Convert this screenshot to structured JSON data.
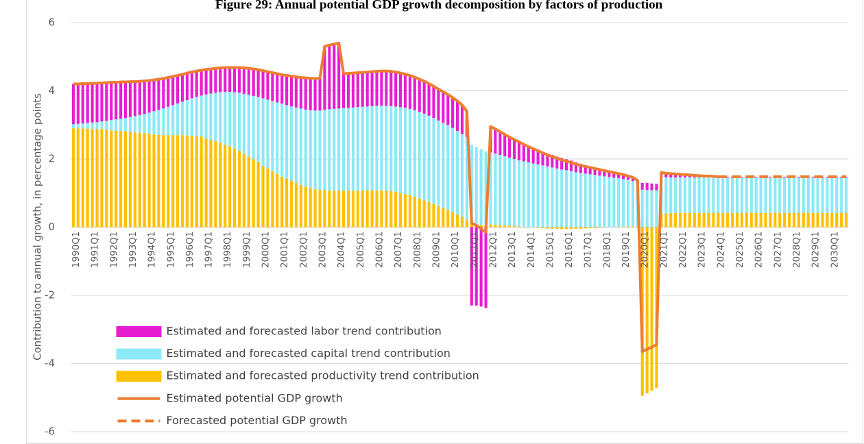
{
  "chart_data": {
    "type": "bar",
    "stacked": true,
    "title": "Figure 29: Annual potential GDP growth decomposition by factors of production",
    "y_label": "Contribution to annual growth, in percentage points",
    "ylim": [
      -6,
      6
    ],
    "yticks": [
      -6,
      -4,
      -2,
      0,
      2,
      4,
      6
    ],
    "grid": true,
    "legend": "lower left",
    "categories": [
      "1990Q1",
      null,
      null,
      null,
      "1991Q1",
      null,
      null,
      null,
      "1992Q1",
      null,
      null,
      null,
      "1993Q1",
      null,
      null,
      null,
      "1994Q1",
      null,
      null,
      null,
      "1995Q1",
      null,
      null,
      null,
      "1996Q1",
      null,
      null,
      null,
      "1997Q1",
      null,
      null,
      null,
      "1998Q1",
      null,
      null,
      null,
      "1999Q1",
      null,
      null,
      null,
      "2000Q1",
      null,
      null,
      null,
      "2001Q1",
      null,
      null,
      null,
      "2002Q1",
      null,
      null,
      null,
      "2003Q1",
      null,
      null,
      null,
      "2004Q1",
      null,
      null,
      null,
      "2005Q1",
      null,
      null,
      null,
      "2006Q1",
      null,
      null,
      null,
      "2007Q1",
      null,
      null,
      null,
      "2008Q1",
      null,
      null,
      null,
      "2009Q1",
      null,
      null,
      null,
      "2010Q1",
      null,
      null,
      null,
      "2011Q1",
      null,
      null,
      null,
      "2012Q1",
      null,
      null,
      null,
      "2013Q1",
      null,
      null,
      null,
      "2014Q1",
      null,
      null,
      null,
      "2015Q1",
      null,
      null,
      null,
      "2016Q1",
      null,
      null,
      null,
      "2017Q1",
      null,
      null,
      null,
      "2018Q1",
      null,
      null,
      null,
      "2019Q1",
      null,
      null,
      null,
      "2020Q1",
      null,
      null,
      null,
      "2021Q1",
      null,
      null,
      null,
      "2022Q1",
      null,
      null,
      null,
      "2023Q1",
      null,
      null,
      null,
      "2024Q1",
      null,
      null,
      null,
      "2025Q1",
      null,
      null,
      null,
      "2026Q1",
      null,
      null,
      null,
      "2027Q1",
      null,
      null,
      null,
      "2028Q1",
      null,
      null,
      null,
      "2029Q1",
      null,
      null,
      null,
      "2030Q1",
      null,
      null,
      null
    ],
    "series": [
      {
        "name": "Estimated and forecasted labor trend contribution",
        "type": "bar",
        "color": "#e61ed2",
        "values": [
          1.18,
          1.17,
          1.17,
          1.15,
          1.15,
          1.14,
          1.13,
          1.12,
          1.11,
          1.09,
          1.08,
          1.06,
          1.04,
          1.01,
          0.99,
          0.97,
          0.94,
          0.92,
          0.9,
          0.88,
          0.86,
          0.84,
          0.82,
          0.8,
          0.79,
          0.77,
          0.76,
          0.74,
          0.74,
          0.72,
          0.72,
          0.71,
          0.71,
          0.71,
          0.72,
          0.74,
          0.76,
          0.78,
          0.79,
          0.8,
          0.81,
          0.82,
          0.83,
          0.84,
          0.85,
          0.87,
          0.89,
          0.9,
          0.91,
          0.93,
          0.94,
          0.94,
          0.95,
          1.86,
          1.88,
          1.9,
          1.92,
          1.01,
          1.01,
          1.01,
          1.01,
          1.01,
          1.01,
          1.01,
          1.01,
          1.02,
          1.02,
          1.02,
          1.01,
          1,
          0.99,
          0.98,
          0.97,
          0.96,
          0.95,
          0.94,
          0.93,
          0.92,
          0.91,
          0.9,
          0.89,
          0.88,
          0.85,
          0.75,
          -2.3,
          -2.3,
          -2.33,
          -2.37,
          0.75,
          0.72,
          0.68,
          0.64,
          0.6,
          0.57,
          0.54,
          0.5,
          0.46,
          0.44,
          0.42,
          0.4,
          0.38,
          0.37,
          0.35,
          0.34,
          0.32,
          0.31,
          0.29,
          0.27,
          0.25,
          0.23,
          0.22,
          0.2,
          0.18,
          0.16,
          0.15,
          0.13,
          0.13,
          0.11,
          0.11,
          0.1,
          0.2,
          0.21,
          0.2,
          0.19,
          0.14,
          0.12,
          0.11,
          0.1,
          0.09,
          0.08,
          0.07,
          0.06,
          0.05,
          0.04,
          0.04,
          0.03,
          0.02,
          0.02,
          0.02,
          0.02,
          0.02,
          0.02,
          0.02,
          0.02,
          0.02,
          0.02,
          0.02,
          0.02,
          0.02,
          0.02,
          0.02,
          0.02,
          0.02,
          0.02,
          0.02,
          0.02,
          0.02,
          0.02,
          0.02,
          0.02,
          0.02,
          0.02,
          0.02,
          0.02
        ]
      },
      {
        "name": "Estimated and forecasted capital trend contribution",
        "type": "bar",
        "color": "#8de9f5",
        "values": [
          0.12,
          0.13,
          0.14,
          0.17,
          0.19,
          0.2,
          0.23,
          0.26,
          0.3,
          0.33,
          0.36,
          0.39,
          0.44,
          0.48,
          0.52,
          0.56,
          0.63,
          0.68,
          0.73,
          0.77,
          0.83,
          0.88,
          0.93,
          0.98,
          1.04,
          1.1,
          1.15,
          1.2,
          1.29,
          1.36,
          1.42,
          1.48,
          1.55,
          1.61,
          1.66,
          1.7,
          1.76,
          1.81,
          1.86,
          1.91,
          1.98,
          2.02,
          2.06,
          2.1,
          2.14,
          2.16,
          2.18,
          2.21,
          2.24,
          2.26,
          2.28,
          2.31,
          2.33,
          2.36,
          2.39,
          2.4,
          2.41,
          2.42,
          2.43,
          2.44,
          2.45,
          2.46,
          2.46,
          2.47,
          2.48,
          2.48,
          2.49,
          2.49,
          2.51,
          2.52,
          2.53,
          2.53,
          2.54,
          2.54,
          2.54,
          2.53,
          2.52,
          2.51,
          2.5,
          2.49,
          2.47,
          2.45,
          2.43,
          2.43,
          2.32,
          2.27,
          2.21,
          2.16,
          2.12,
          2.09,
          2.06,
          2.03,
          2,
          1.97,
          1.94,
          1.92,
          1.9,
          1.87,
          1.84,
          1.81,
          1.78,
          1.75,
          1.72,
          1.69,
          1.67,
          1.64,
          1.61,
          1.59,
          1.57,
          1.55,
          1.53,
          1.51,
          1.49,
          1.47,
          1.45,
          1.43,
          1.4,
          1.37,
          1.33,
          1.25,
          1.1,
          1.09,
          1.08,
          1.08,
          1.06,
          1.06,
          1.05,
          1.05,
          1.04,
          1.04,
          1.04,
          1.04,
          1.04,
          1.04,
          1.04,
          1.04,
          1.04,
          1.04,
          1.04,
          1.04,
          1.04,
          1.04,
          1.04,
          1.04,
          1.04,
          1.04,
          1.04,
          1.04,
          1.04,
          1.04,
          1.04,
          1.04,
          1.04,
          1.04,
          1.04,
          1.04,
          1.04,
          1.04,
          1.04,
          1.04,
          1.04,
          1.04,
          1.04,
          1.04
        ]
      },
      {
        "name": "Estimated and forecasted productivity trend contribution",
        "type": "bar",
        "color": "#ffc000",
        "values": [
          2.9,
          2.9,
          2.9,
          2.89,
          2.88,
          2.88,
          2.87,
          2.86,
          2.84,
          2.83,
          2.82,
          2.81,
          2.79,
          2.78,
          2.77,
          2.76,
          2.73,
          2.72,
          2.71,
          2.71,
          2.7,
          2.7,
          2.7,
          2.7,
          2.69,
          2.68,
          2.67,
          2.66,
          2.6,
          2.56,
          2.52,
          2.48,
          2.42,
          2.36,
          2.3,
          2.24,
          2.15,
          2.07,
          1.99,
          1.91,
          1.8,
          1.72,
          1.64,
          1.56,
          1.48,
          1.42,
          1.36,
          1.3,
          1.24,
          1.19,
          1.15,
          1.11,
          1.09,
          1.08,
          1.07,
          1.07,
          1.07,
          1.07,
          1.07,
          1.07,
          1.07,
          1.07,
          1.08,
          1.08,
          1.08,
          1.08,
          1.07,
          1.06,
          1.03,
          1,
          0.97,
          0.94,
          0.89,
          0.84,
          0.79,
          0.74,
          0.68,
          0.62,
          0.56,
          0.5,
          0.44,
          0.37,
          0.3,
          0.22,
          0.1,
          0.08,
          0.07,
          0.06,
          0.08,
          0.07,
          0.06,
          0.05,
          0.04,
          0.03,
          0.02,
          0.01,
          0,
          -0.01,
          -0.02,
          -0.03,
          -0.04,
          -0.05,
          -0.05,
          -0.06,
          -0.06,
          -0.06,
          -0.05,
          -0.05,
          -0.04,
          -0.03,
          -0.03,
          -0.02,
          -0.01,
          0,
          0,
          0.01,
          0.01,
          0.02,
          0.02,
          0.02,
          -4.95,
          -4.88,
          -4.8,
          -4.72,
          0.4,
          0.4,
          0.41,
          0.41,
          0.42,
          0.42,
          0.42,
          0.42,
          0.42,
          0.42,
          0.42,
          0.42,
          0.42,
          0.42,
          0.42,
          0.42,
          0.42,
          0.42,
          0.42,
          0.42,
          0.42,
          0.42,
          0.42,
          0.42,
          0.42,
          0.42,
          0.42,
          0.42,
          0.42,
          0.42,
          0.42,
          0.42,
          0.42,
          0.42,
          0.42,
          0.42,
          0.42,
          0.42,
          0.42,
          0.42
        ]
      },
      {
        "name": "Estimated potential GDP growth",
        "type": "line",
        "color": "#ed7d31",
        "dashed": false,
        "values": [
          4.2,
          4.2,
          4.21,
          4.21,
          4.22,
          4.22,
          4.23,
          4.24,
          4.25,
          4.25,
          4.26,
          4.26,
          4.27,
          4.27,
          4.28,
          4.29,
          4.3,
          4.32,
          4.34,
          4.36,
          4.39,
          4.42,
          4.45,
          4.48,
          4.52,
          4.55,
          4.58,
          4.6,
          4.63,
          4.64,
          4.66,
          4.67,
          4.68,
          4.68,
          4.68,
          4.68,
          4.67,
          4.66,
          4.64,
          4.62,
          4.59,
          4.56,
          4.53,
          4.5,
          4.47,
          4.45,
          4.43,
          4.41,
          4.39,
          4.38,
          4.37,
          4.36,
          4.37,
          5.3,
          5.34,
          5.37,
          5.4,
          4.5,
          4.51,
          4.52,
          4.53,
          4.54,
          4.55,
          4.56,
          4.57,
          4.58,
          4.58,
          4.57,
          4.55,
          4.52,
          4.49,
          4.45,
          4.4,
          4.34,
          4.28,
          4.21,
          4.13,
          4.05,
          3.97,
          3.89,
          3.8,
          3.7,
          3.58,
          3.4,
          0.12,
          0.05,
          -0.05,
          -0.15,
          2.95,
          2.88,
          2.8,
          2.72,
          2.64,
          2.57,
          2.5,
          2.43,
          2.36,
          2.3,
          2.24,
          2.18,
          2.12,
          2.07,
          2.02,
          1.97,
          1.93,
          1.89,
          1.85,
          1.81,
          1.78,
          1.75,
          1.72,
          1.69,
          1.66,
          1.63,
          1.6,
          1.57,
          1.54,
          1.5,
          1.46,
          1.37,
          -3.65,
          -3.58,
          -3.52,
          -3.45,
          1.6,
          1.58,
          1.57,
          1.56,
          1.55,
          1.54,
          1.53,
          1.52,
          1.51,
          1.5,
          1.5,
          1.49,
          1.48,
          null,
          null,
          null,
          null,
          null,
          null,
          null,
          null,
          null,
          null,
          null,
          null,
          null,
          null,
          null,
          null,
          null,
          null,
          null,
          null,
          null,
          null,
          null,
          null,
          null,
          null,
          null
        ]
      },
      {
        "name": "Forecasted potential GDP growth",
        "type": "line",
        "color": "#ed7d31",
        "dashed": true,
        "values": [
          null,
          null,
          null,
          null,
          null,
          null,
          null,
          null,
          null,
          null,
          null,
          null,
          null,
          null,
          null,
          null,
          null,
          null,
          null,
          null,
          null,
          null,
          null,
          null,
          null,
          null,
          null,
          null,
          null,
          null,
          null,
          null,
          null,
          null,
          null,
          null,
          null,
          null,
          null,
          null,
          null,
          null,
          null,
          null,
          null,
          null,
          null,
          null,
          null,
          null,
          null,
          null,
          null,
          null,
          null,
          null,
          null,
          null,
          null,
          null,
          null,
          null,
          null,
          null,
          null,
          null,
          null,
          null,
          null,
          null,
          null,
          null,
          null,
          null,
          null,
          null,
          null,
          null,
          null,
          null,
          null,
          null,
          null,
          null,
          null,
          null,
          null,
          null,
          null,
          null,
          null,
          null,
          null,
          null,
          null,
          null,
          null,
          null,
          null,
          null,
          null,
          null,
          null,
          null,
          null,
          null,
          null,
          null,
          null,
          null,
          null,
          null,
          null,
          null,
          null,
          null,
          null,
          null,
          null,
          null,
          null,
          null,
          null,
          null,
          null,
          null,
          null,
          null,
          null,
          null,
          null,
          null,
          null,
          null,
          null,
          null,
          1.48,
          1.48,
          1.48,
          1.48,
          1.48,
          1.48,
          1.48,
          1.48,
          1.48,
          1.48,
          1.48,
          1.48,
          1.48,
          1.48,
          1.48,
          1.48,
          1.48,
          1.48,
          1.48,
          1.48,
          1.48,
          1.48,
          1.48,
          1.48,
          1.48,
          1.48,
          1.48,
          1.48
        ]
      }
    ]
  }
}
